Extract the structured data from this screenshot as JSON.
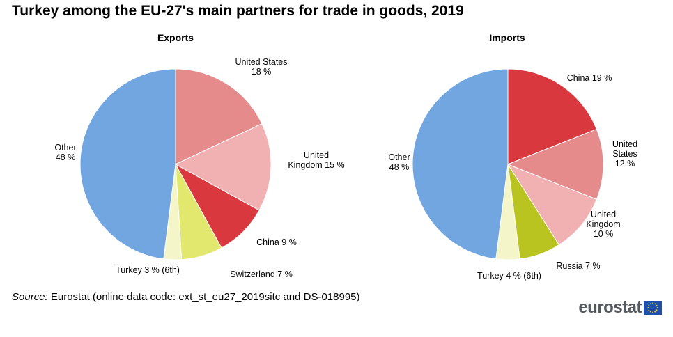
{
  "title": "Turkey among the EU-27's main partners for trade in goods, 2019",
  "source": {
    "label": "Source:",
    "text": "Eurostat (online data code: ext_st_eu27_2019sitc and DS-018995)"
  },
  "logo": {
    "text": "eurostat"
  },
  "colors": {
    "united_states": "#e68b8c",
    "united_kingdom": "#f1b0b2",
    "china": "#d9393e",
    "switzerland": "#e2e76e",
    "russia": "#b9c421",
    "turkey": "#f4f5c8",
    "other": "#72a6e0"
  },
  "chart_data": [
    {
      "type": "pie",
      "title": "Exports",
      "slices": [
        {
          "name": "United States",
          "value": 18,
          "label_lines": [
            "United States",
            "18 %"
          ],
          "color_key": "united_states"
        },
        {
          "name": "United Kingdom",
          "value": 15,
          "label_lines": [
            "United",
            "Kingdom 15 %"
          ],
          "color_key": "united_kingdom"
        },
        {
          "name": "China",
          "value": 9,
          "label_lines": [
            "China  9 %"
          ],
          "color_key": "china"
        },
        {
          "name": "Switzerland",
          "value": 7,
          "label_lines": [
            "Switzerland  7 %"
          ],
          "color_key": "switzerland"
        },
        {
          "name": "Turkey",
          "value": 3,
          "label_lines": [
            "Turkey  3 % (6th)"
          ],
          "color_key": "turkey"
        },
        {
          "name": "Other",
          "value": 48,
          "label_lines": [
            "Other",
            "48 %"
          ],
          "color_key": "other"
        }
      ]
    },
    {
      "type": "pie",
      "title": "Imports",
      "slices": [
        {
          "name": "China",
          "value": 19,
          "label_lines": [
            "China  19 %"
          ],
          "color_key": "china"
        },
        {
          "name": "United States",
          "value": 12,
          "label_lines": [
            "United",
            "States",
            "12 %"
          ],
          "color_key": "united_states"
        },
        {
          "name": "United Kingdom",
          "value": 10,
          "label_lines": [
            "United",
            "Kingdom",
            "10 %"
          ],
          "color_key": "united_kingdom"
        },
        {
          "name": "Russia",
          "value": 7,
          "label_lines": [
            "Russia  7 %"
          ],
          "color_key": "russia"
        },
        {
          "name": "Turkey",
          "value": 4,
          "label_lines": [
            "Turkey  4 % (6th)"
          ],
          "color_key": "turkey"
        },
        {
          "name": "Other",
          "value": 48,
          "label_lines": [
            "Other",
            "48 %"
          ],
          "color_key": "other"
        }
      ]
    }
  ]
}
